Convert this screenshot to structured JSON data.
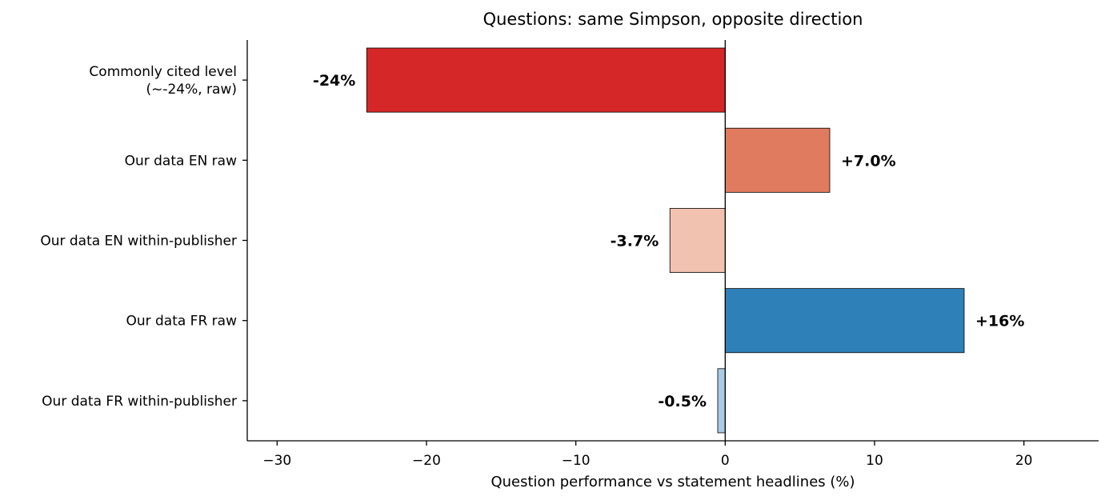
{
  "chart_data": {
    "type": "bar",
    "orientation": "horizontal",
    "title": "Questions: same Simpson, opposite direction",
    "xlabel": "Question performance vs statement headlines (%)",
    "ylabel": "",
    "xlim": [
      -32,
      25
    ],
    "xticks": [
      -30,
      -20,
      -10,
      0,
      10,
      20
    ],
    "xtick_labels": [
      "−30",
      "−20",
      "−10",
      "0",
      "10",
      "20"
    ],
    "grid": false,
    "categories": [
      [
        "Commonly cited level",
        "(~-24%, raw)"
      ],
      [
        "Our data EN raw"
      ],
      [
        "Our data EN within-publisher"
      ],
      [
        "Our data FR raw"
      ],
      [
        "Our data FR within-publisher"
      ]
    ],
    "values": [
      -24,
      7.0,
      -3.7,
      16,
      -0.5
    ],
    "value_labels": [
      "-24%",
      "+7.0%",
      "-3.7%",
      "+16%",
      "-0.5%"
    ],
    "colors": [
      "#d62728",
      "#e07b5f",
      "#f2c2b1",
      "#2e80b9",
      "#a9cbe5"
    ]
  }
}
